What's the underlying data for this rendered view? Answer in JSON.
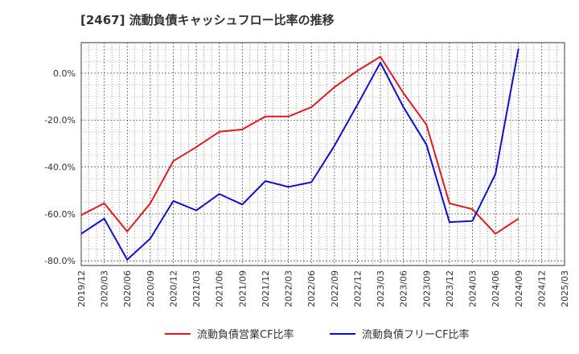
{
  "chart_data": {
    "type": "line",
    "title": "[2467]  流動負債キャッシュフロー比率の推移",
    "xlabel": "",
    "ylabel": "",
    "ylim": [
      -82,
      13
    ],
    "yticks": [
      0,
      -20,
      -40,
      -60,
      -80
    ],
    "ytick_labels": [
      "0.0%",
      "-20.0%",
      "-40.0%",
      "-60.0%",
      "-80.0%"
    ],
    "categories": [
      "2019/12",
      "2020/03",
      "2020/06",
      "2020/09",
      "2020/12",
      "2021/03",
      "2021/06",
      "2021/09",
      "2021/12",
      "2022/03",
      "2022/06",
      "2022/09",
      "2022/12",
      "2023/03",
      "2023/06",
      "2023/09",
      "2023/12",
      "2024/03",
      "2024/06",
      "2024/09",
      "2024/12",
      "2025/03"
    ],
    "grid": true,
    "legend_position": "bottom",
    "series": [
      {
        "name": "流動負債営業CF比率",
        "color": "#e31a1c",
        "points": [
          [
            "2019/12",
            -60.5
          ],
          [
            "2020/03",
            -55.5
          ],
          [
            "2020/06",
            -67.5
          ],
          [
            "2020/09",
            -55.5
          ],
          [
            "2020/12",
            -37.5
          ],
          [
            "2021/03",
            -31.5
          ],
          [
            "2021/06",
            -25
          ],
          [
            "2021/09",
            -24
          ],
          [
            "2021/12",
            -18.5
          ],
          [
            "2022/03",
            -18.5
          ],
          [
            "2022/06",
            -14.5
          ],
          [
            "2022/09",
            -6
          ],
          [
            "2022/12",
            1
          ],
          [
            "2023/03",
            7
          ],
          [
            "2023/06",
            -8.5
          ],
          [
            "2023/09",
            -22
          ],
          [
            "2023/12",
            -55.5
          ],
          [
            "2024/03",
            -58
          ],
          [
            "2024/06",
            -68.5
          ],
          [
            "2024/09",
            -62
          ]
        ]
      },
      {
        "name": "流動負債フリーCF比率",
        "color": "#1010cc",
        "points": [
          [
            "2019/12",
            -68.5
          ],
          [
            "2020/03",
            -62
          ],
          [
            "2020/06",
            -79.5
          ],
          [
            "2020/09",
            -70.5
          ],
          [
            "2020/12",
            -54.5
          ],
          [
            "2021/03",
            -58.5
          ],
          [
            "2021/06",
            -51.5
          ],
          [
            "2021/09",
            -56
          ],
          [
            "2021/12",
            -46
          ],
          [
            "2022/03",
            -48.5
          ],
          [
            "2022/06",
            -46.5
          ],
          [
            "2022/09",
            -31
          ],
          [
            "2022/12",
            -13.5
          ],
          [
            "2023/03",
            4.5
          ],
          [
            "2023/06",
            -14.5
          ],
          [
            "2023/09",
            -30.5
          ],
          [
            "2023/12",
            -63.5
          ],
          [
            "2024/03",
            -63
          ],
          [
            "2024/06",
            -43
          ],
          [
            "2024/09",
            10.5
          ]
        ]
      }
    ]
  }
}
